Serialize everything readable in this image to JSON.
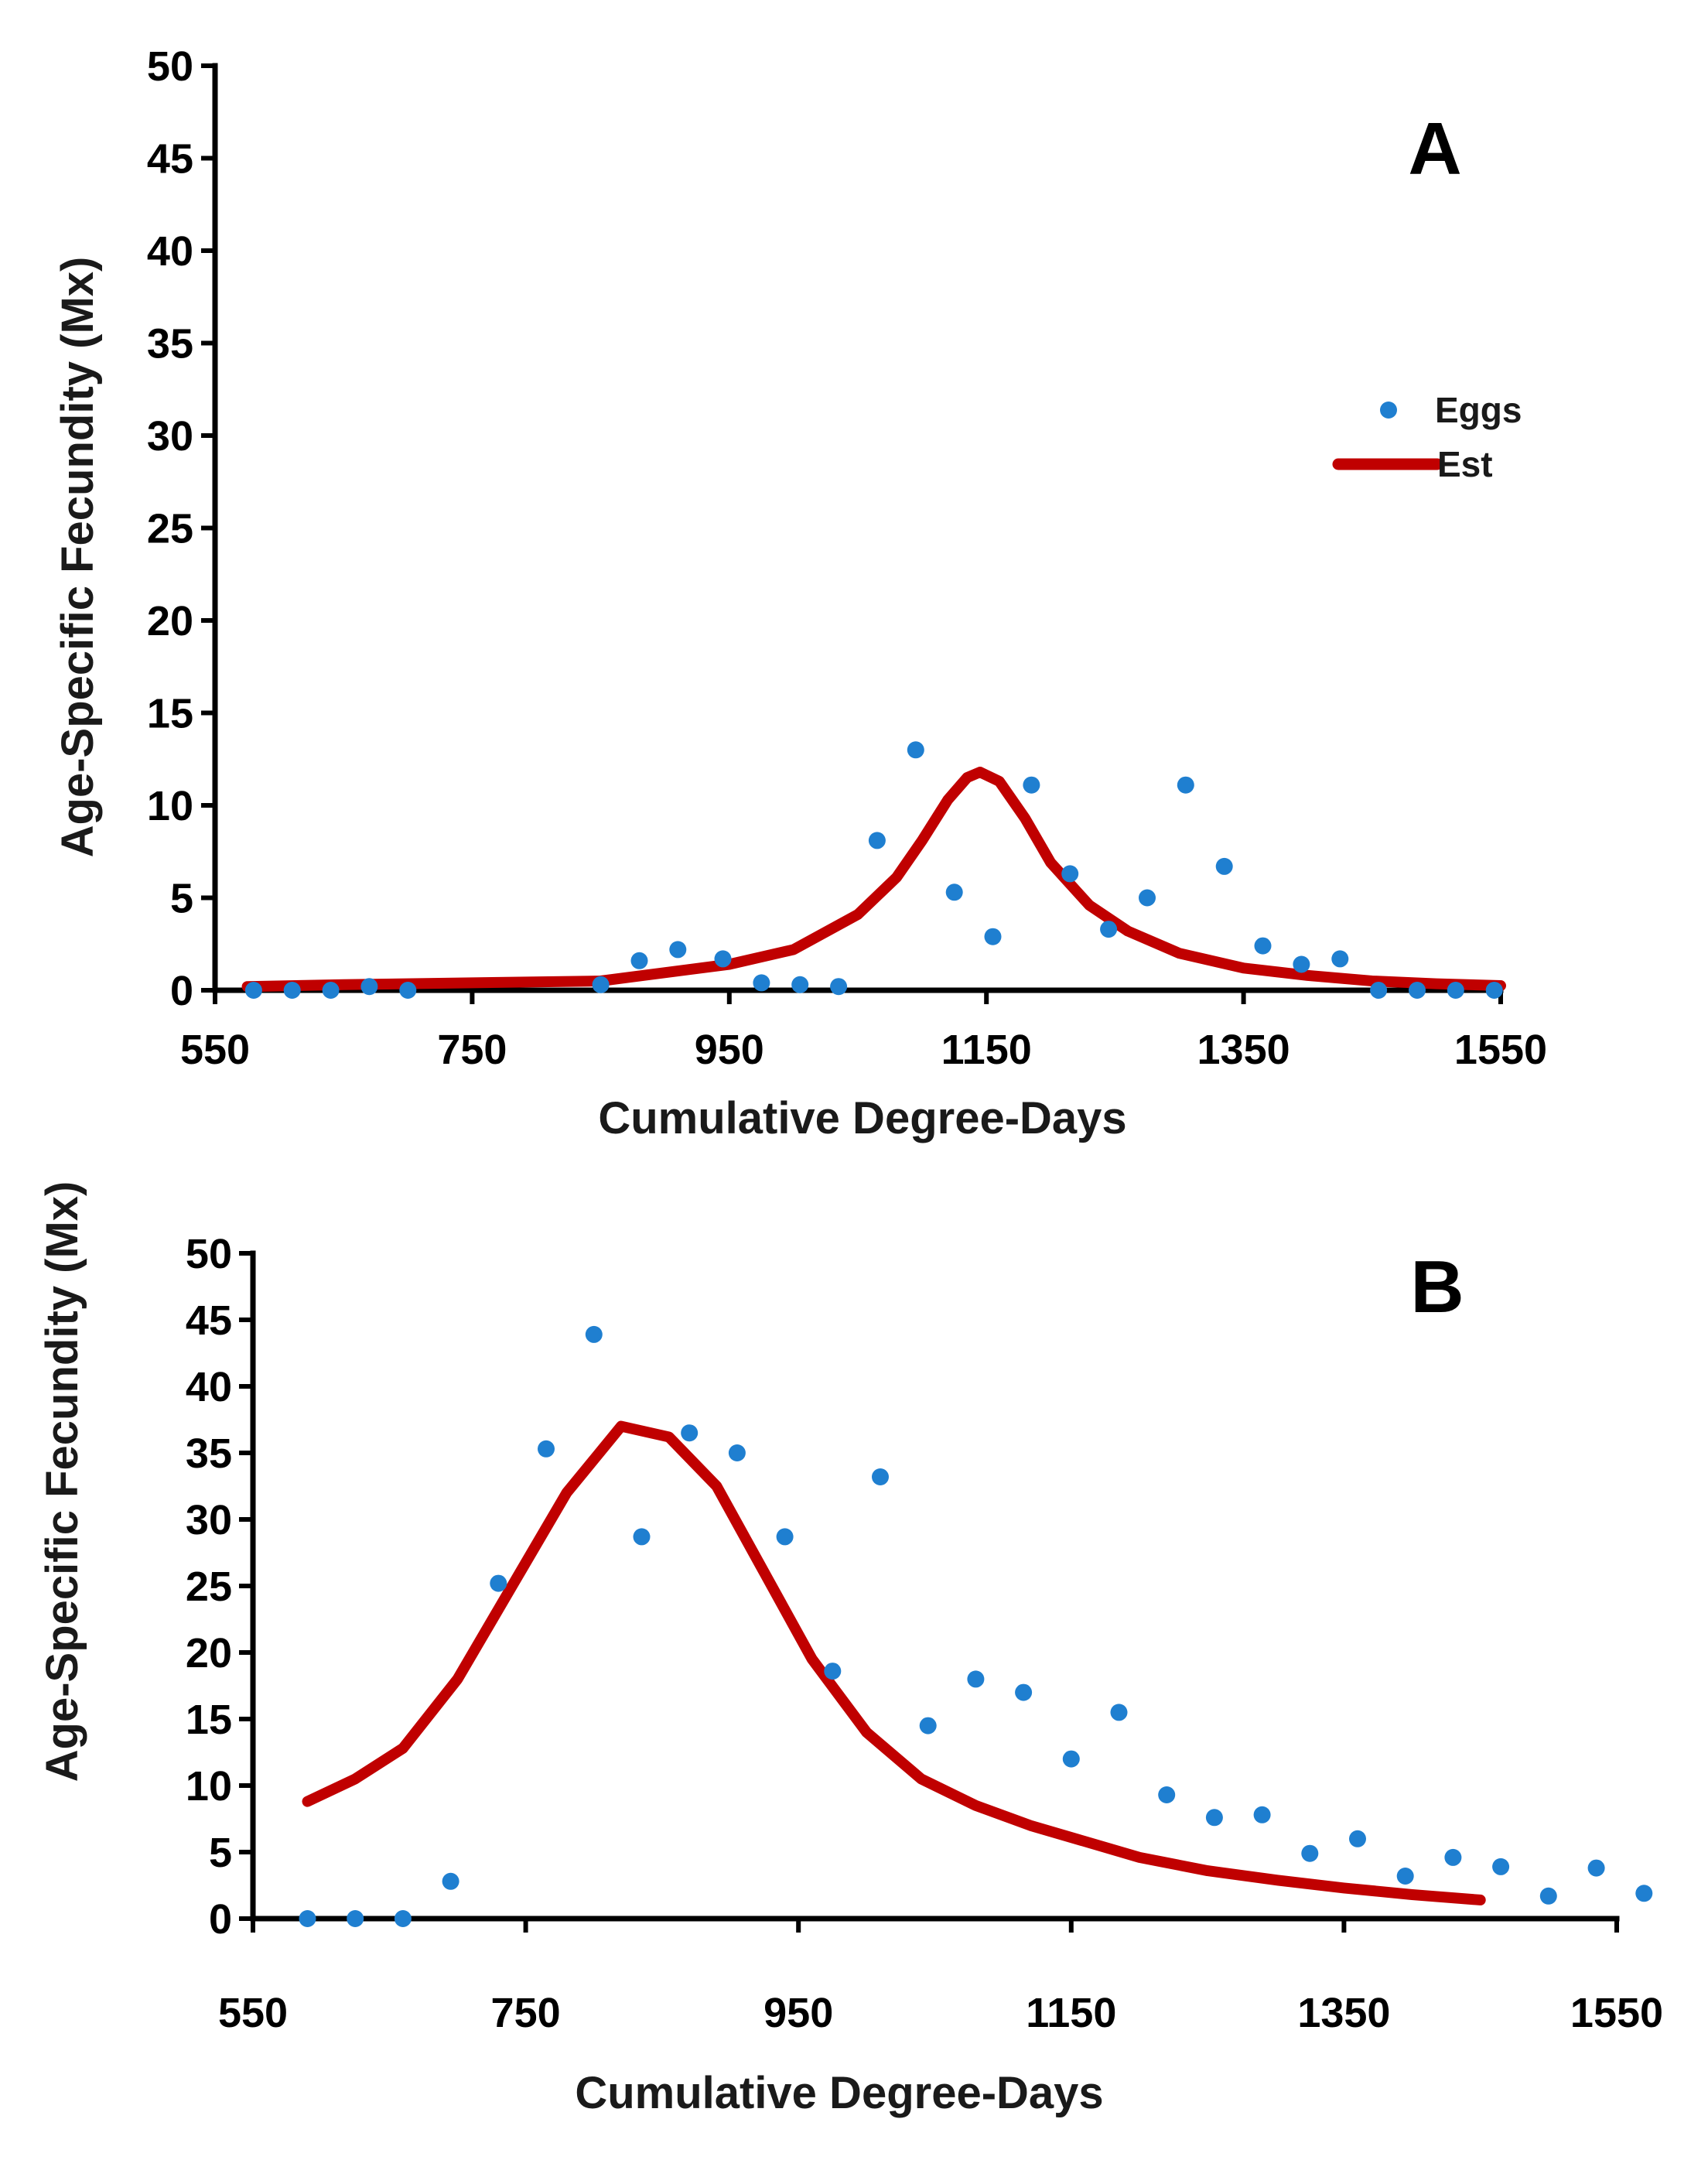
{
  "chart_data": [
    {
      "type": "scatter",
      "panel_label": "A",
      "xlabel": "Cumulative Degree-Days",
      "ylabel": "Age-Specific Fecundity (Mx)",
      "xlim": [
        550,
        1550
      ],
      "ylim": [
        0,
        50
      ],
      "xticks": [
        550,
        750,
        950,
        1150,
        1350,
        1550
      ],
      "yticks": [
        0,
        5,
        10,
        15,
        20,
        25,
        30,
        35,
        40,
        45,
        50
      ],
      "legend": {
        "position": "right",
        "entries": [
          "Eggs",
          "Est"
        ]
      },
      "series": [
        {
          "name": "Eggs",
          "kind": "points",
          "color": "#1f7fd0",
          "x": [
            580,
            610,
            640,
            670,
            700,
            850,
            880,
            910,
            945,
            975,
            1005,
            1035,
            1065,
            1095,
            1125,
            1155,
            1185,
            1215,
            1245,
            1275,
            1305,
            1335,
            1365,
            1395,
            1425,
            1455,
            1485,
            1515,
            1545
          ],
          "y": [
            0,
            0,
            0,
            0.2,
            0,
            0.3,
            1.6,
            2.2,
            1.7,
            0.4,
            0.3,
            0.2,
            8.1,
            13,
            5.3,
            2.9,
            11.1,
            6.3,
            3.3,
            5,
            11.1,
            6.7,
            2.4,
            1.4,
            1.7,
            0,
            0,
            0,
            0
          ]
        },
        {
          "name": "Est",
          "kind": "line",
          "color": "#c00000",
          "x": [
            575,
            650,
            750,
            850,
            950,
            1000,
            1050,
            1080,
            1100,
            1120,
            1135,
            1145,
            1160,
            1180,
            1200,
            1230,
            1260,
            1300,
            1350,
            1400,
            1450,
            1500,
            1550
          ],
          "y": [
            0.2,
            0.3,
            0.4,
            0.5,
            1.4,
            2.2,
            4.1,
            6.1,
            8.1,
            10.3,
            11.5,
            11.8,
            11.3,
            9.3,
            6.9,
            4.6,
            3.2,
            2.0,
            1.2,
            0.8,
            0.5,
            0.35,
            0.25
          ]
        }
      ]
    },
    {
      "type": "scatter",
      "panel_label": "B",
      "xlabel": "Cumulative Degree-Days",
      "ylabel": "Age-Specific Fecundity (Mx)",
      "xlim": [
        550,
        1550
      ],
      "ylim": [
        0,
        50
      ],
      "xticks": [
        550,
        750,
        950,
        1150,
        1350,
        1550
      ],
      "yticks": [
        0,
        5,
        10,
        15,
        20,
        25,
        30,
        35,
        40,
        45,
        50
      ],
      "series": [
        {
          "name": "Eggs",
          "kind": "points",
          "color": "#1f7fd0",
          "x": [
            590,
            625,
            660,
            695,
            730,
            765,
            800,
            835,
            870,
            905,
            940,
            975,
            1010,
            1045,
            1080,
            1115,
            1150,
            1185,
            1220,
            1255,
            1290,
            1325,
            1360,
            1395,
            1430,
            1465,
            1500,
            1535,
            1570
          ],
          "y": [
            0,
            0,
            0,
            2.8,
            25.2,
            35.3,
            43.9,
            28.7,
            36.5,
            35,
            28.7,
            18.6,
            33.2,
            14.5,
            18,
            17,
            12,
            15.5,
            9.3,
            7.6,
            7.8,
            4.9,
            6,
            3.2,
            4.6,
            3.9,
            1.7,
            3.8,
            1.9
          ]
        },
        {
          "name": "Est",
          "kind": "line",
          "color": "#c00000",
          "x": [
            590,
            625,
            660,
            700,
            740,
            780,
            820,
            855,
            890,
            925,
            960,
            1000,
            1040,
            1080,
            1120,
            1160,
            1200,
            1250,
            1300,
            1350,
            1400,
            1450
          ],
          "y": [
            8.8,
            10.5,
            12.8,
            18,
            25,
            32,
            37,
            36.2,
            32.5,
            26,
            19.5,
            14,
            10.5,
            8.5,
            7.0,
            5.8,
            4.6,
            3.6,
            2.9,
            2.3,
            1.8,
            1.4
          ]
        }
      ]
    }
  ]
}
